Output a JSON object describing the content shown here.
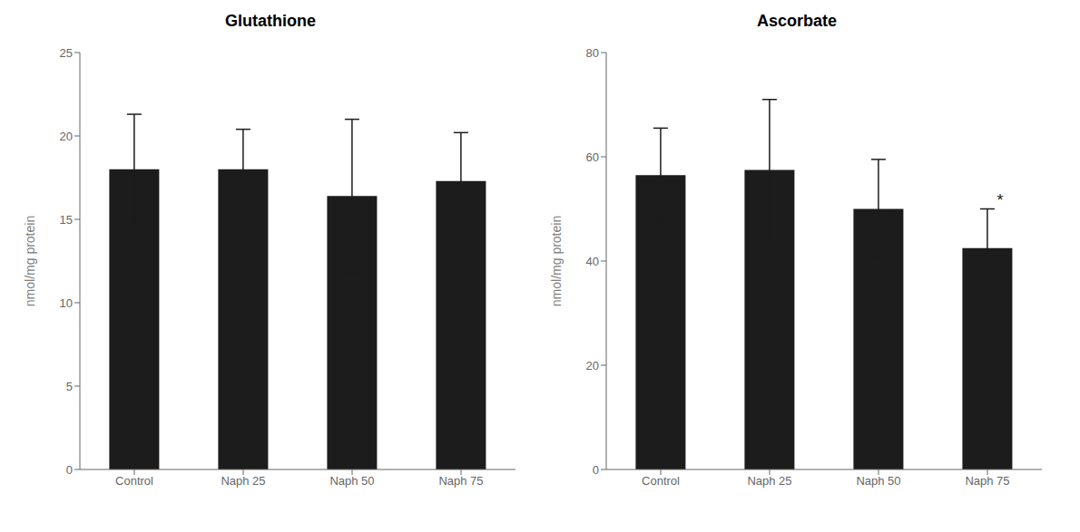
{
  "chart_data": [
    {
      "type": "bar",
      "title": "Glutathione",
      "categories": [
        "Control",
        "Naph 25",
        "Naph 50",
        "Naph 75"
      ],
      "values": [
        18.0,
        18.0,
        16.4,
        17.3
      ],
      "errors": [
        3.3,
        2.4,
        4.6,
        2.9
      ],
      "color": "#1c1c1c",
      "ylim": [
        0,
        25
      ],
      "yticks": [
        0,
        5,
        10,
        15,
        20,
        25
      ],
      "ylabel": "nmol/mg protein",
      "grid": false
    },
    {
      "type": "bar",
      "title": "Ascorbate",
      "categories": [
        "Control",
        "Naph 25",
        "Naph 50",
        "Naph 75"
      ],
      "values": [
        56.5,
        57.5,
        50.0,
        42.5
      ],
      "errors": [
        9.0,
        13.5,
        9.5,
        7.5
      ],
      "color": "#1c1c1c",
      "ylim": [
        0,
        80
      ],
      "yticks": [
        0,
        20,
        40,
        60,
        80
      ],
      "ylabel": "nmol/mg protein",
      "grid": false,
      "annotations": [
        {
          "text": "*",
          "category": "Naph 75"
        }
      ]
    }
  ]
}
